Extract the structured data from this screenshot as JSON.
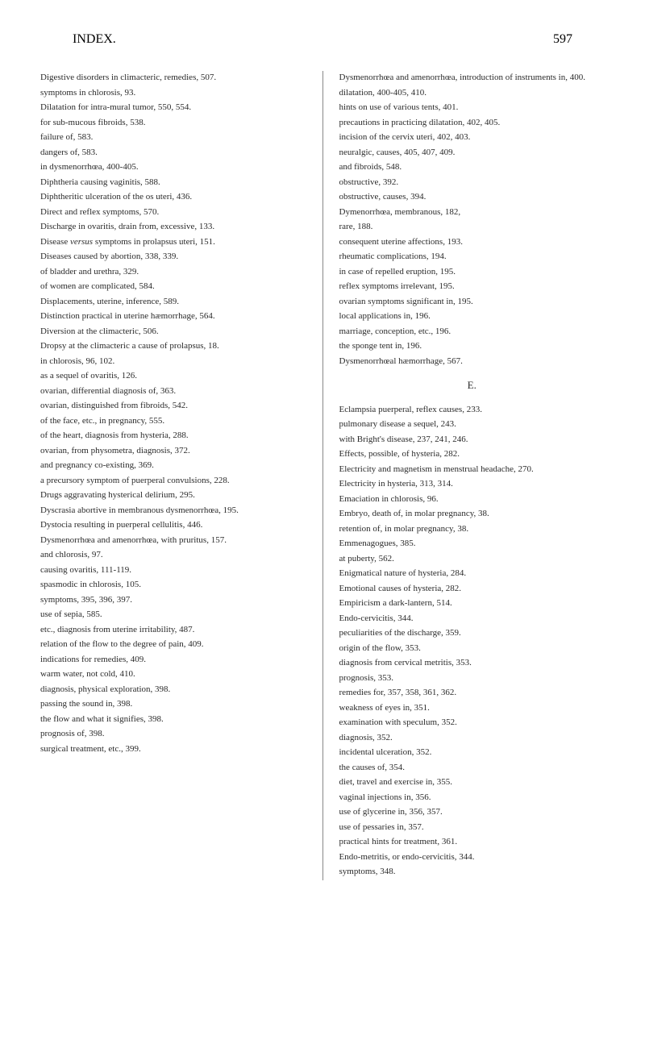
{
  "header": {
    "title": "INDEX.",
    "pageNumber": "597"
  },
  "leftColumn": [
    {
      "text": "Digestive disorders in climacteric, remedies, 507.",
      "class": "entry-line"
    },
    {
      "text": "symptoms in chlorosis, 93.",
      "class": "sub"
    },
    {
      "text": "Dilatation for intra-mural tumor, 550, 554.",
      "class": "entry-line"
    },
    {
      "text": "for sub-mucous fibroids, 538.",
      "class": "sub"
    },
    {
      "text": "failure of, 583.",
      "class": "sub"
    },
    {
      "text": "dangers of, 583.",
      "class": "sub"
    },
    {
      "text": "in dysmenorrhœa, 400-405.",
      "class": "sub"
    },
    {
      "text": "Diphtheria causing vaginitis, 588.",
      "class": "entry-line"
    },
    {
      "text": "Diphtheritic ulceration of the os uteri, 436.",
      "class": "entry-line"
    },
    {
      "text": "Direct and reflex symptoms, 570.",
      "class": "entry-line"
    },
    {
      "text": "Discharge in ovaritis, drain from, excessive, 133.",
      "class": "entry-line"
    },
    {
      "text": "Disease <span class=\"italic\">versus</span> symptoms in prolapsus uteri, 151.",
      "class": "entry-line"
    },
    {
      "text": "Diseases caused by abortion, 338, 339.",
      "class": "entry-line"
    },
    {
      "text": "of bladder and urethra, 329.",
      "class": "sub"
    },
    {
      "text": "of women are complicated, 584.",
      "class": "sub"
    },
    {
      "text": "Displacements, uterine, inference, 589.",
      "class": "entry-line"
    },
    {
      "text": "Distinction practical in uterine hæmorrhage, 564.",
      "class": "entry-line"
    },
    {
      "text": "Diversion at the climacteric, 506.",
      "class": "entry-line"
    },
    {
      "text": "Dropsy at the climacteric a cause of prolapsus, 18.",
      "class": "entry-line"
    },
    {
      "text": "in chlorosis, 96, 102.",
      "class": "sub"
    },
    {
      "text": "as a sequel of ovaritis, 126.",
      "class": "sub"
    },
    {
      "text": "ovarian, differential diagnosis of, 363.",
      "class": "sub"
    },
    {
      "text": "ovarian, distinguished from fibroids, 542.",
      "class": "sub"
    },
    {
      "text": "of the face, etc., in pregnancy, 555.",
      "class": "sub"
    },
    {
      "text": "of the heart, diagnosis from hysteria, 288.",
      "class": "sub"
    },
    {
      "text": "ovarian, from physometra, diagnosis, 372.",
      "class": "sub"
    },
    {
      "text": "and pregnancy co-existing, 369.",
      "class": "sub"
    },
    {
      "text": "a precursory symptom of puerperal convulsions, 228.",
      "class": "sub"
    },
    {
      "text": "Drugs aggravating hysterical delirium, 295.",
      "class": "entry-line"
    },
    {
      "text": "Dyscrasia abortive in membranous dysmenorrhœa, 195.",
      "class": "entry-line"
    },
    {
      "text": "Dystocia resulting in puerperal cellulitis, 446.",
      "class": "entry-line"
    },
    {
      "text": "Dysmenorrhœa and amenorrhœa, with pruritus, 157.",
      "class": "entry-line"
    },
    {
      "text": "and chlorosis, 97.",
      "class": "sub"
    },
    {
      "text": "causing ovaritis, 111-119.",
      "class": "sub"
    },
    {
      "text": "spasmodic in chlorosis, 105.",
      "class": "sub"
    },
    {
      "text": "symptoms, 395, 396, 397.",
      "class": "sub"
    },
    {
      "text": "use of sepia, 585.",
      "class": "sub"
    },
    {
      "text": "etc., diagnosis from uterine irritability, 487.",
      "class": "sub"
    },
    {
      "text": "relation of the flow to the degree of pain, 409.",
      "class": "sub"
    },
    {
      "text": "indications for remedies, 409.",
      "class": "sub"
    },
    {
      "text": "warm water, not cold, 410.",
      "class": "sub"
    },
    {
      "text": "diagnosis, physical exploration, 398.",
      "class": "sub"
    },
    {
      "text": "passing the sound in, 398.",
      "class": "sub"
    },
    {
      "text": "the flow and what it signifies, 398.",
      "class": "sub"
    },
    {
      "text": "prognosis of, 398.",
      "class": "sub"
    },
    {
      "text": "surgical treatment, etc., 399.",
      "class": "sub"
    }
  ],
  "rightColumn": [
    {
      "text": "Dysmenorrhœa and amenorrhœa, introduction of instruments in, 400.",
      "class": "entry-line"
    },
    {
      "text": "dilatation, 400-405, 410.",
      "class": "sub"
    },
    {
      "text": "hints on use of various tents, 401.",
      "class": "sub"
    },
    {
      "text": "precautions in practicing dilatation, 402, 405.",
      "class": "sub"
    },
    {
      "text": "incision of the cervix uteri, 402, 403.",
      "class": "sub"
    },
    {
      "text": "neuralgic, causes, 405, 407, 409.",
      "class": "sub"
    },
    {
      "text": "and fibroids, 548.",
      "class": "sub"
    },
    {
      "text": "obstructive, 392.",
      "class": "sub"
    },
    {
      "text": "obstructive, causes, 394.",
      "class": "sub"
    },
    {
      "text": "Dymenorrhœa, membranous, 182,",
      "class": "entry-line"
    },
    {
      "text": "rare, 188.",
      "class": "sub"
    },
    {
      "text": "consequent uterine affections, 193.",
      "class": "sub"
    },
    {
      "text": "rheumatic complications, 194.",
      "class": "sub"
    },
    {
      "text": "in case of repelled eruption, 195.",
      "class": "sub"
    },
    {
      "text": "reflex symptoms irrelevant, 195.",
      "class": "sub"
    },
    {
      "text": "ovarian symptoms significant in, 195.",
      "class": "sub"
    },
    {
      "text": "local applications in, 196.",
      "class": "sub"
    },
    {
      "text": "marriage, conception, etc., 196.",
      "class": "sub"
    },
    {
      "text": "the sponge tent in, 196.",
      "class": "sub"
    },
    {
      "text": "Dysmenorrhœal hæmorrhage, 567.",
      "class": "entry-line"
    },
    {
      "text": "E.",
      "class": "section-letter"
    },
    {
      "text": "Eclampsia puerperal, reflex causes, 233.",
      "class": "entry-line"
    },
    {
      "text": "pulmonary disease a sequel, 243.",
      "class": "sub"
    },
    {
      "text": "with Bright's disease, 237, 241, 246.",
      "class": "sub"
    },
    {
      "text": "Effects, possible, of hysteria, 282.",
      "class": "entry-line"
    },
    {
      "text": "Electricity and magnetism in menstrual headache, 270.",
      "class": "entry-line"
    },
    {
      "text": "Electricity in hysteria, 313, 314.",
      "class": "entry-line"
    },
    {
      "text": "Emaciation in chlorosis, 96.",
      "class": "entry-line"
    },
    {
      "text": "Embryo, death of, in molar pregnancy, 38.",
      "class": "entry-line"
    },
    {
      "text": "retention of, in molar pregnancy, 38.",
      "class": "sub"
    },
    {
      "text": "Emmenagogues, 385.",
      "class": "entry-line"
    },
    {
      "text": "at puberty, 562.",
      "class": "sub"
    },
    {
      "text": "Enigmatical nature of hysteria, 284.",
      "class": "entry-line"
    },
    {
      "text": "Emotional causes of hysteria, 282.",
      "class": "entry-line"
    },
    {
      "text": "Empiricism a dark-lantern, 514.",
      "class": "entry-line"
    },
    {
      "text": "Endo-cervicitis, 344.",
      "class": "entry-line"
    },
    {
      "text": "peculiarities of the discharge, 359.",
      "class": "sub"
    },
    {
      "text": "origin of the flow, 353.",
      "class": "sub"
    },
    {
      "text": "diagnosis from cervical metritis, 353.",
      "class": "sub"
    },
    {
      "text": "prognosis, 353.",
      "class": "sub"
    },
    {
      "text": "remedies for, 357, 358, 361, 362.",
      "class": "sub"
    },
    {
      "text": "weakness of eyes in, 351.",
      "class": "sub"
    },
    {
      "text": "examination with speculum, 352.",
      "class": "sub"
    },
    {
      "text": "diagnosis, 352.",
      "class": "sub"
    },
    {
      "text": "incidental ulceration, 352.",
      "class": "sub"
    },
    {
      "text": "the causes of, 354.",
      "class": "sub"
    },
    {
      "text": "diet, travel and exercise in, 355.",
      "class": "sub"
    },
    {
      "text": "vaginal injections in, 356.",
      "class": "sub"
    },
    {
      "text": "use of glycerine in, 356, 357.",
      "class": "sub"
    },
    {
      "text": "use of pessaries in, 357.",
      "class": "sub"
    },
    {
      "text": "practical hints for treatment, 361.",
      "class": "sub"
    },
    {
      "text": "Endo-metritis, or endo-cervicitis, 344.",
      "class": "entry-line"
    },
    {
      "text": "symptoms, 348.",
      "class": "sub"
    }
  ]
}
